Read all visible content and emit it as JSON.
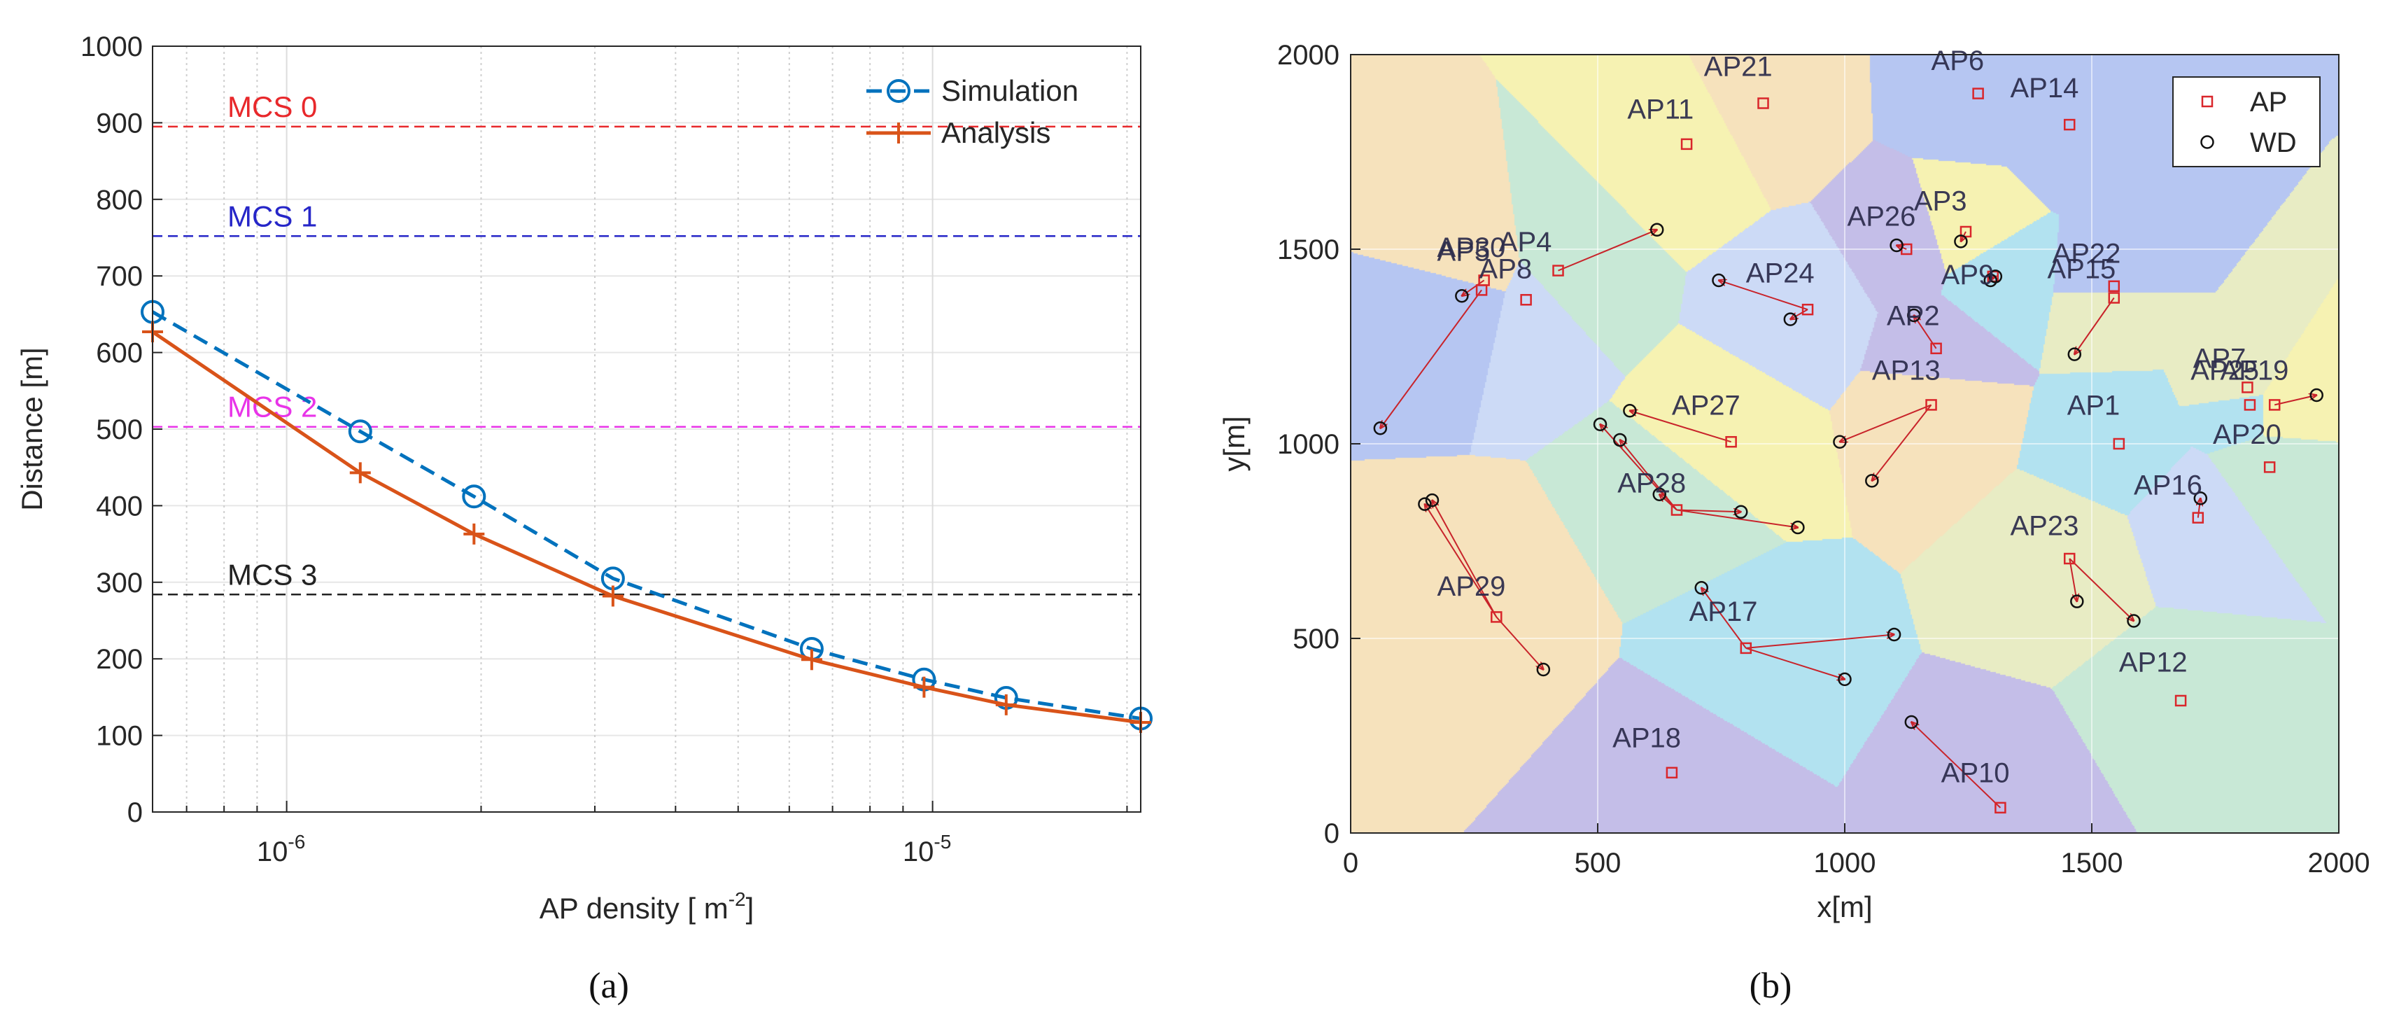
{
  "chart_data": [
    {
      "type": "line",
      "panel_label": "(a)",
      "xlabel": "AP density [ m",
      "xlabel_exponent": "-2",
      "xlabel_suffix": "]",
      "ylabel": "Distance [m]",
      "xscale": "log",
      "xlim": [
        6.2e-07,
        2.1e-05
      ],
      "ylim": [
        0,
        1000
      ],
      "grid": true,
      "legend_position": "top-right",
      "y_ticks": [
        0,
        100,
        200,
        300,
        400,
        500,
        600,
        700,
        800,
        900,
        1000
      ],
      "x_tick_labels": [
        {
          "value": 1e-06,
          "base": "10",
          "exponent": "-6"
        },
        {
          "value": 1e-05,
          "base": "10",
          "exponent": "-5"
        }
      ],
      "series": [
        {
          "name": "Simulation",
          "color": "#0072BD",
          "style": "dashed",
          "marker": "circle",
          "x": [
            6.2e-07,
            1.3e-06,
            1.95e-06,
            3.2e-06,
            6.5e-06,
            9.7e-06,
            1.3e-05,
            2.1e-05
          ],
          "y": [
            653,
            497,
            412,
            305,
            213,
            173,
            149,
            122
          ]
        },
        {
          "name": "Analysis",
          "color": "#D95319",
          "style": "solid",
          "marker": "plus",
          "x": [
            6.2e-07,
            1.3e-06,
            1.95e-06,
            3.2e-06,
            6.5e-06,
            9.7e-06,
            1.3e-05,
            2.1e-05
          ],
          "y": [
            627,
            443,
            363,
            282,
            199,
            163,
            140,
            117
          ]
        }
      ],
      "reference_lines": [
        {
          "label": "MCS 0",
          "y": 895,
          "color": "#E8282B"
        },
        {
          "label": "MCS 1",
          "y": 752,
          "color": "#2626C8"
        },
        {
          "label": "MCS 2",
          "y": 503,
          "color": "#E834E8"
        },
        {
          "label": "MCS 3",
          "y": 284,
          "color": "#222222"
        }
      ]
    },
    {
      "type": "scatter",
      "panel_label": "(b)",
      "xlabel": "x[m]",
      "ylabel": "y[m]",
      "xlim": [
        0,
        2000
      ],
      "ylim": [
        0,
        2000
      ],
      "x_ticks": [
        0,
        500,
        1000,
        1500,
        2000
      ],
      "y_ticks": [
        0,
        500,
        1000,
        1500,
        2000
      ],
      "grid": true,
      "legend_position": "top-right",
      "legend": [
        {
          "name": "AP",
          "marker": "square",
          "color": "#D9262B"
        },
        {
          "name": "WD",
          "marker": "circle",
          "color": "#111111"
        }
      ],
      "aps": [
        {
          "name": "AP1",
          "x": 1555,
          "y": 1000,
          "label_x": 1450,
          "label_y": 1075
        },
        {
          "name": "AP2",
          "x": 1185,
          "y": 1245,
          "label_x": 1085,
          "label_y": 1305
        },
        {
          "name": "AP3",
          "x": 1245,
          "y": 1545,
          "label_x": 1140,
          "label_y": 1600
        },
        {
          "name": "AP4",
          "x": 420,
          "y": 1445,
          "label_x": 300,
          "label_y": 1495
        },
        {
          "name": "AP5",
          "x": 270,
          "y": 1420,
          "label_x": 175,
          "label_y": 1470
        },
        {
          "name": "AP6",
          "x": 1270,
          "y": 1900,
          "label_x": 1175,
          "label_y": 1960
        },
        {
          "name": "AP7",
          "x": 1815,
          "y": 1145,
          "label_x": 1705,
          "label_y": 1195
        },
        {
          "name": "AP8",
          "x": 355,
          "y": 1370,
          "label_x": 260,
          "label_y": 1425
        },
        {
          "name": "AP9",
          "x": 1300,
          "y": 1430,
          "label_x": 1195,
          "label_y": 1410
        },
        {
          "name": "AP10",
          "x": 1315,
          "y": 65,
          "label_x": 1195,
          "label_y": 130
        },
        {
          "name": "AP11",
          "x": 680,
          "y": 1770,
          "label_x": 560,
          "label_y": 1835
        },
        {
          "name": "AP12",
          "x": 1680,
          "y": 340,
          "label_x": 1555,
          "label_y": 415
        },
        {
          "name": "AP13",
          "x": 1175,
          "y": 1100,
          "label_x": 1055,
          "label_y": 1165
        },
        {
          "name": "AP14",
          "x": 1455,
          "y": 1820,
          "label_x": 1335,
          "label_y": 1890
        },
        {
          "name": "AP15",
          "x": 1545,
          "y": 1375,
          "label_x": 1410,
          "label_y": 1425
        },
        {
          "name": "AP16",
          "x": 1715,
          "y": 810,
          "label_x": 1585,
          "label_y": 870
        },
        {
          "name": "AP17",
          "x": 800,
          "y": 475,
          "label_x": 685,
          "label_y": 545
        },
        {
          "name": "AP18",
          "x": 650,
          "y": 155,
          "label_x": 530,
          "label_y": 220
        },
        {
          "name": "AP19",
          "x": 1870,
          "y": 1100,
          "label_x": 1760,
          "label_y": 1165
        },
        {
          "name": "AP20",
          "x": 1860,
          "y": 940,
          "label_x": 1745,
          "label_y": 1000
        },
        {
          "name": "AP21",
          "x": 835,
          "y": 1875,
          "label_x": 715,
          "label_y": 1945
        },
        {
          "name": "AP22",
          "x": 1545,
          "y": 1405,
          "label_x": 1420,
          "label_y": 1465
        },
        {
          "name": "AP23",
          "x": 1455,
          "y": 705,
          "label_x": 1335,
          "label_y": 765
        },
        {
          "name": "AP24",
          "x": 925,
          "y": 1345,
          "label_x": 800,
          "label_y": 1415
        },
        {
          "name": "AP25",
          "x": 1820,
          "y": 1100,
          "label_x": 1700,
          "label_y": 1165
        },
        {
          "name": "AP26",
          "x": 1125,
          "y": 1500,
          "label_x": 1005,
          "label_y": 1560
        },
        {
          "name": "AP27",
          "x": 770,
          "y": 1005,
          "label_x": 650,
          "label_y": 1075
        },
        {
          "name": "AP28",
          "x": 660,
          "y": 830,
          "label_x": 540,
          "label_y": 875
        },
        {
          "name": "AP29",
          "x": 295,
          "y": 555,
          "label_x": 175,
          "label_y": 610
        },
        {
          "name": "AP30",
          "x": 265,
          "y": 1395,
          "label_x": 175,
          "label_y": 1480
        }
      ],
      "wds": [
        {
          "x": 620,
          "y": 1550,
          "ap": "AP4"
        },
        {
          "x": 225,
          "y": 1380,
          "ap": "AP5"
        },
        {
          "x": 60,
          "y": 1040,
          "ap": "AP30"
        },
        {
          "x": 745,
          "y": 1420,
          "ap": "AP24"
        },
        {
          "x": 890,
          "y": 1320,
          "ap": "AP24"
        },
        {
          "x": 1105,
          "y": 1510,
          "ap": "AP26"
        },
        {
          "x": 1235,
          "y": 1520,
          "ap": "AP3"
        },
        {
          "x": 1295,
          "y": 1420,
          "ap": "AP9"
        },
        {
          "x": 1305,
          "y": 1430,
          "ap": "AP9"
        },
        {
          "x": 1140,
          "y": 1330,
          "ap": "AP2"
        },
        {
          "x": 1465,
          "y": 1230,
          "ap": "AP15"
        },
        {
          "x": 990,
          "y": 1005,
          "ap": "AP13"
        },
        {
          "x": 1055,
          "y": 905,
          "ap": "AP13"
        },
        {
          "x": 565,
          "y": 1085,
          "ap": "AP27"
        },
        {
          "x": 505,
          "y": 1050,
          "ap": "AP28"
        },
        {
          "x": 545,
          "y": 1010,
          "ap": "AP28"
        },
        {
          "x": 625,
          "y": 870,
          "ap": "AP28"
        },
        {
          "x": 790,
          "y": 825,
          "ap": "AP28"
        },
        {
          "x": 905,
          "y": 785,
          "ap": "AP28"
        },
        {
          "x": 150,
          "y": 845,
          "ap": "AP29"
        },
        {
          "x": 165,
          "y": 855,
          "ap": "AP29"
        },
        {
          "x": 390,
          "y": 420,
          "ap": "AP29"
        },
        {
          "x": 710,
          "y": 630,
          "ap": "AP17"
        },
        {
          "x": 1100,
          "y": 510,
          "ap": "AP17"
        },
        {
          "x": 1000,
          "y": 395,
          "ap": "AP17"
        },
        {
          "x": 1135,
          "y": 285,
          "ap": "AP10"
        },
        {
          "x": 1470,
          "y": 595,
          "ap": "AP23"
        },
        {
          "x": 1585,
          "y": 545,
          "ap": "AP23"
        },
        {
          "x": 1720,
          "y": 860,
          "ap": "AP16"
        },
        {
          "x": 1955,
          "y": 1125,
          "ap": "AP19"
        }
      ]
    }
  ]
}
